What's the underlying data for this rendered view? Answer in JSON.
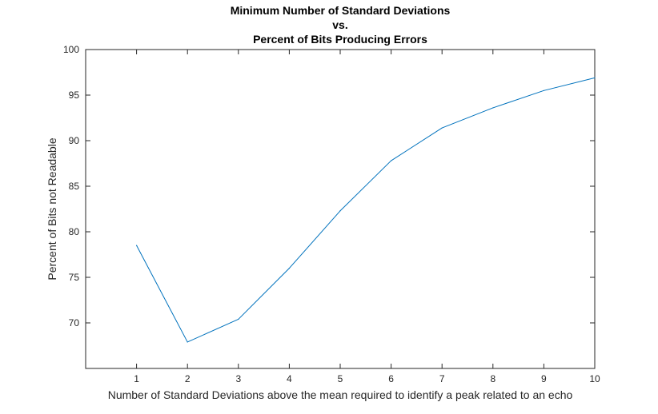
{
  "chart_data": {
    "type": "line",
    "title_lines": [
      "Minimum Number of Standard Deviations",
      "vs.",
      "Percent of Bits Producing Errors"
    ],
    "xlabel": "Number of Standard Deviations above the mean required to identify a peak related to an echo",
    "ylabel": "Percent of Bits not Readable",
    "xlim": [
      0,
      10
    ],
    "ylim": [
      65,
      100
    ],
    "x_ticks": [
      1,
      2,
      3,
      4,
      5,
      6,
      7,
      8,
      9,
      10
    ],
    "y_ticks": [
      70,
      75,
      80,
      85,
      90,
      95,
      100
    ],
    "grid": false,
    "series": [
      {
        "color": "#0072bd",
        "x": [
          1,
          2,
          3,
          4,
          5,
          6,
          7,
          8,
          9,
          10
        ],
        "y": [
          78.5,
          67.9,
          70.4,
          76.0,
          82.3,
          87.8,
          91.4,
          93.6,
          95.5,
          96.9
        ]
      }
    ]
  }
}
